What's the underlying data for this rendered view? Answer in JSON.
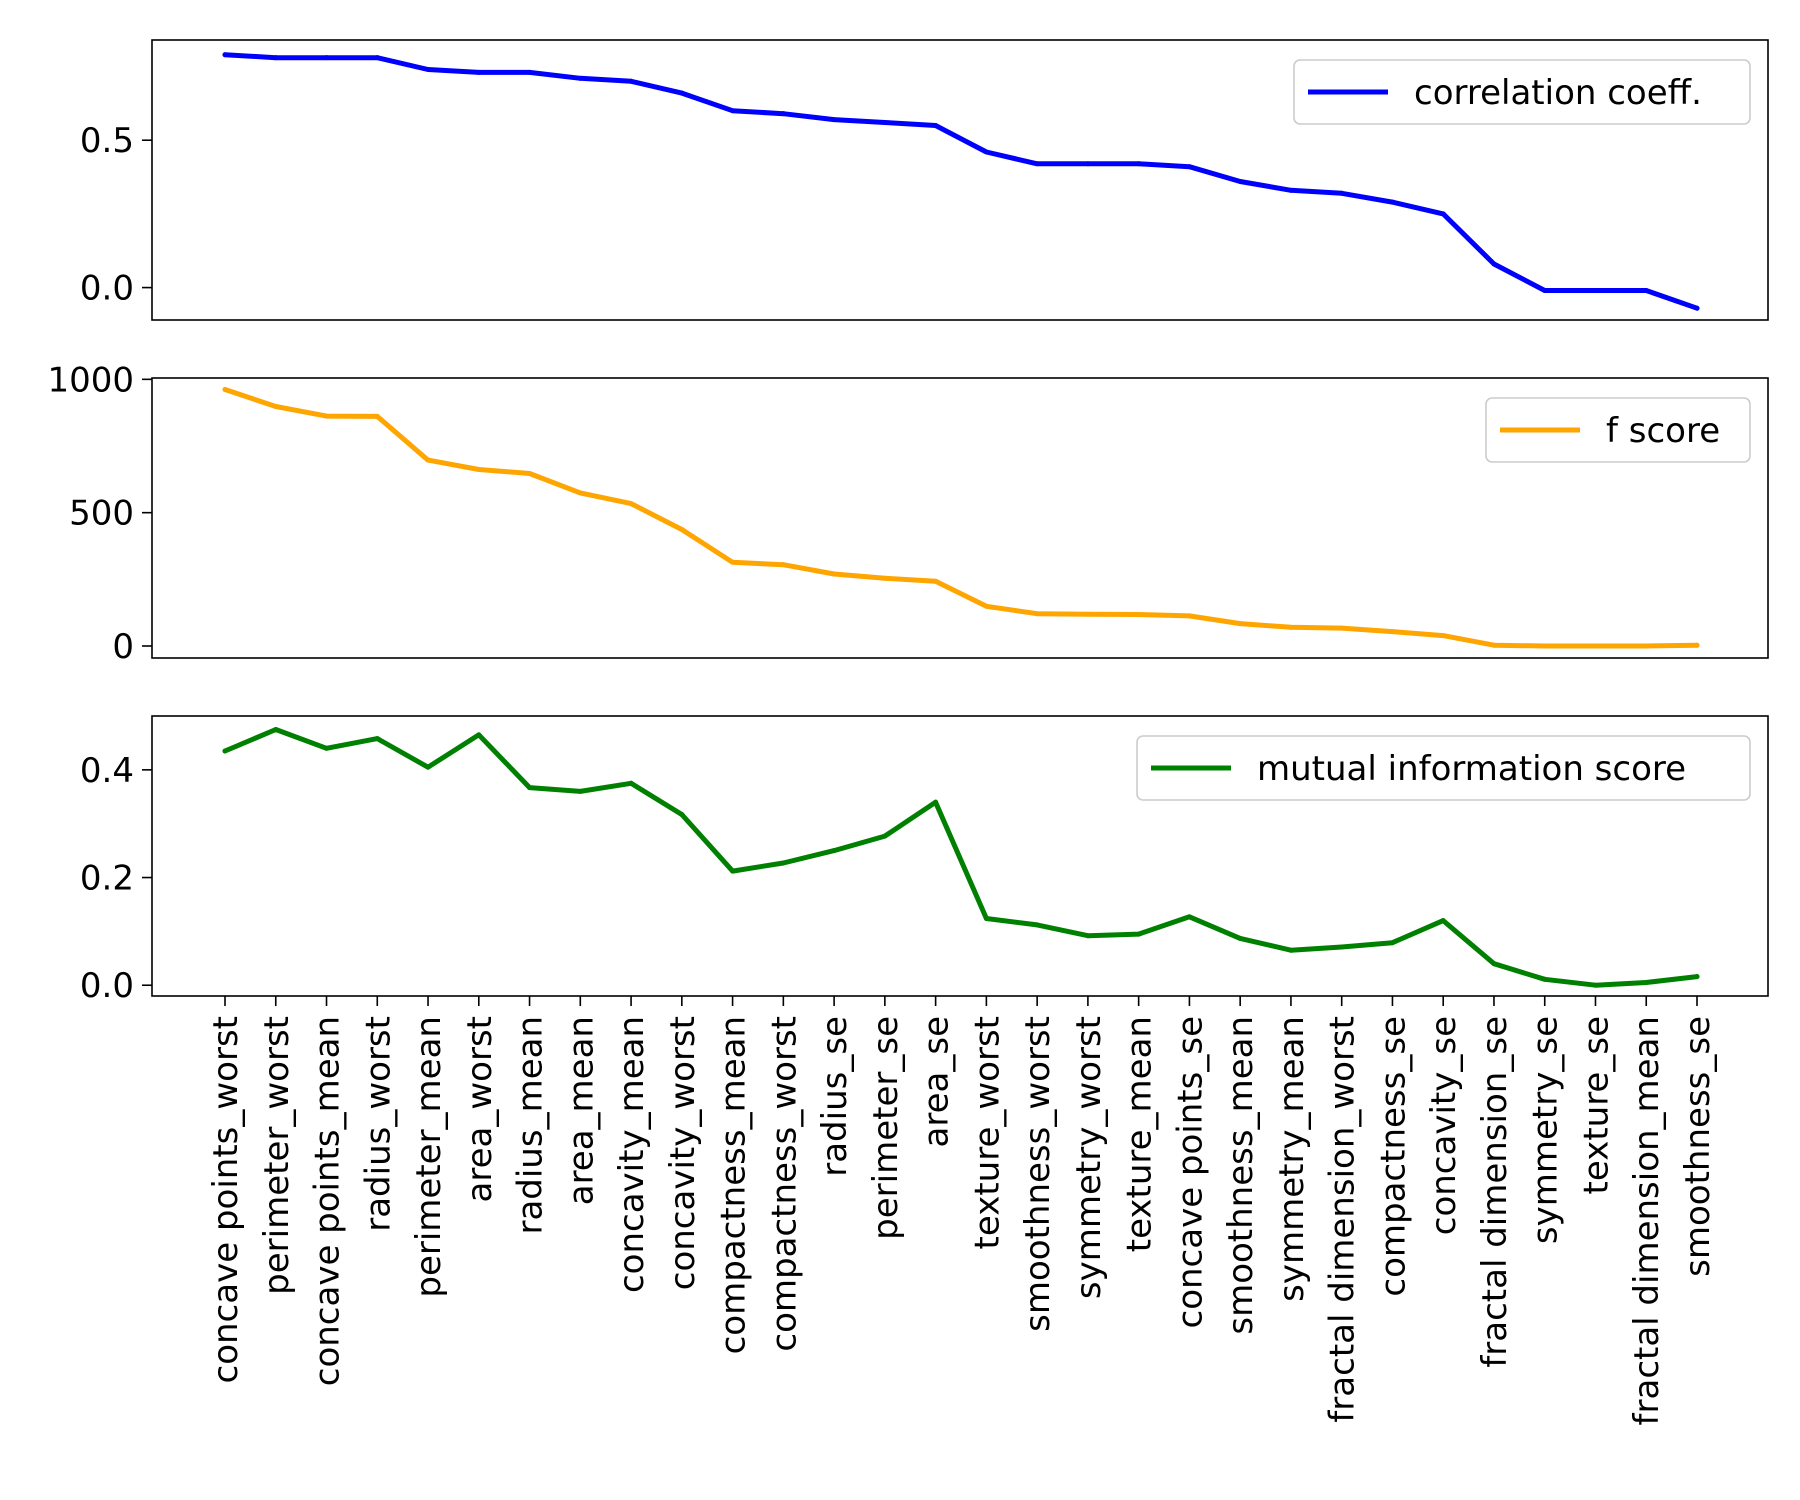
{
  "chart_data": {
    "type": "line",
    "categories": [
      "concave points_worst",
      "perimeter_worst",
      "concave points_mean",
      "radius_worst",
      "perimeter_mean",
      "area_worst",
      "radius_mean",
      "area_mean",
      "concavity_mean",
      "concavity_worst",
      "compactness_mean",
      "compactness_worst",
      "radius_se",
      "perimeter_se",
      "area_se",
      "texture_worst",
      "smoothness_worst",
      "symmetry_worst",
      "texture_mean",
      "concave points_se",
      "smoothness_mean",
      "symmetry_mean",
      "fractal dimension_worst",
      "compactness_se",
      "concavity_se",
      "fractal dimension_se",
      "symmetry_se",
      "texture_se",
      "fractal dimension_mean",
      "smoothness_se"
    ],
    "panels": [
      {
        "legend": "correlation coeff.",
        "color": "#0000ff",
        "ylim": [
          -0.11,
          0.84
        ],
        "yticks": [
          0.0,
          0.5
        ],
        "ytick_labels": [
          "0.0",
          "0.5"
        ],
        "legend_position": "upper right",
        "values": [
          0.79,
          0.78,
          0.78,
          0.78,
          0.74,
          0.73,
          0.73,
          0.71,
          0.7,
          0.66,
          0.6,
          0.59,
          0.57,
          0.56,
          0.55,
          0.46,
          0.42,
          0.42,
          0.42,
          0.41,
          0.36,
          0.33,
          0.32,
          0.29,
          0.25,
          0.08,
          -0.01,
          -0.01,
          -0.01,
          -0.07
        ]
      },
      {
        "legend": "f score",
        "color": "#ffa500",
        "ylim": [
          -45,
          1005
        ],
        "yticks": [
          0,
          500,
          1000
        ],
        "ytick_labels": [
          "0",
          "500",
          "1000"
        ],
        "legend_position": "upper right",
        "values": [
          962,
          898,
          862,
          861,
          697,
          662,
          647,
          574,
          534,
          437,
          314,
          305,
          270,
          254,
          243,
          149,
          121,
          119,
          118,
          113,
          84,
          70,
          67,
          54,
          39,
          3,
          0.1,
          0.1,
          0.1,
          2.6
        ]
      },
      {
        "legend": "mutual information score",
        "color": "#008000",
        "ylim": [
          -0.02,
          0.5
        ],
        "yticks": [
          0.0,
          0.2,
          0.4
        ],
        "ytick_labels": [
          "0.0",
          "0.2",
          "0.4"
        ],
        "legend_position": "upper right",
        "values": [
          0.435,
          0.475,
          0.44,
          0.458,
          0.405,
          0.465,
          0.367,
          0.36,
          0.375,
          0.317,
          0.212,
          0.227,
          0.25,
          0.277,
          0.34,
          0.124,
          0.112,
          0.092,
          0.095,
          0.127,
          0.087,
          0.065,
          0.071,
          0.079,
          0.12,
          0.04,
          0.011,
          0.0,
          0.005,
          0.016
        ]
      }
    ]
  }
}
